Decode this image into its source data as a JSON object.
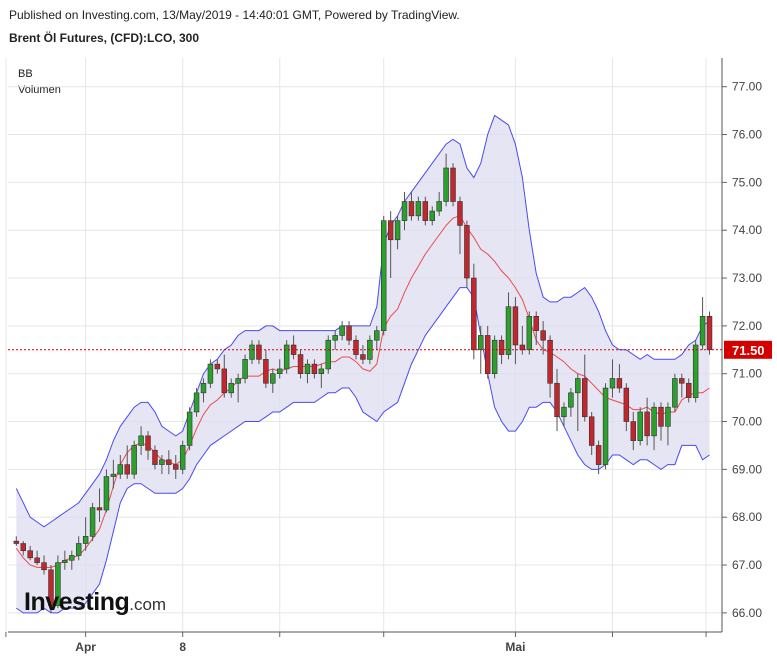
{
  "header": {
    "published": "Published on Investing.com, 13/May/2019 - 14:40:01 GMT, Powered by TradingView.",
    "title": "Brent Öl Futures, (CFD):LCO, 300"
  },
  "legend": {
    "bb": "BB",
    "volume": "Volumen"
  },
  "watermark": {
    "brand": "Investing",
    "suffix": ".com"
  },
  "colors": {
    "up": "#2ca02c",
    "down": "#c0282d",
    "wick": "#555555",
    "band_fill": "#dcdcf0",
    "band_line": "#4a4aee",
    "basis_line": "#ee4a4a",
    "price_line": "#d40000",
    "price_label_bg": "#d40000",
    "grid": "#e6e6e6"
  },
  "chart_data": {
    "type": "candlestick",
    "y_axis": {
      "ticks": [
        "66.00",
        "67.00",
        "68.00",
        "69.00",
        "70.00",
        "71.00",
        "72.00",
        "73.00",
        "74.00",
        "75.00",
        "76.00",
        "77.00"
      ],
      "min": 65.6,
      "max": 77.6,
      "side": "right"
    },
    "x_axis": {
      "labels": [
        "Apr",
        "8",
        "Mai"
      ],
      "label_positions": [
        10,
        24,
        72
      ],
      "n": 101
    },
    "grid": true,
    "last_price": "71.50",
    "last_price_value": 71.5,
    "candles": [
      [
        67.5,
        67.6,
        67.4,
        67.45
      ],
      [
        67.45,
        67.5,
        67.2,
        67.3
      ],
      [
        67.3,
        67.4,
        67.1,
        67.15
      ],
      [
        67.15,
        67.3,
        67.0,
        67.05
      ],
      [
        67.05,
        67.2,
        66.8,
        66.9
      ],
      [
        66.9,
        67.0,
        66.0,
        66.15
      ],
      [
        66.15,
        67.2,
        66.1,
        67.05
      ],
      [
        67.05,
        67.3,
        66.9,
        67.1
      ],
      [
        67.1,
        67.3,
        66.9,
        67.2
      ],
      [
        67.2,
        67.6,
        67.1,
        67.45
      ],
      [
        67.45,
        68.0,
        67.3,
        67.6
      ],
      [
        67.6,
        68.3,
        67.5,
        68.2
      ],
      [
        68.2,
        68.6,
        67.9,
        68.15
      ],
      [
        68.15,
        69.0,
        68.1,
        68.85
      ],
      [
        68.85,
        69.2,
        68.6,
        68.9
      ],
      [
        68.9,
        69.3,
        68.8,
        69.1
      ],
      [
        69.1,
        69.5,
        68.8,
        68.9
      ],
      [
        68.9,
        69.6,
        68.8,
        69.5
      ],
      [
        69.5,
        69.9,
        69.3,
        69.7
      ],
      [
        69.7,
        69.8,
        69.2,
        69.4
      ],
      [
        69.4,
        69.5,
        69.0,
        69.1
      ],
      [
        69.1,
        69.3,
        68.9,
        69.2
      ],
      [
        69.2,
        69.4,
        68.9,
        69.1
      ],
      [
        69.1,
        69.3,
        68.8,
        69.0
      ],
      [
        69.0,
        69.6,
        68.9,
        69.5
      ],
      [
        69.5,
        70.3,
        69.4,
        70.2
      ],
      [
        70.2,
        70.7,
        70.1,
        70.6
      ],
      [
        70.6,
        70.9,
        70.4,
        70.8
      ],
      [
        70.8,
        71.3,
        70.7,
        71.2
      ],
      [
        71.2,
        71.3,
        71.0,
        71.1
      ],
      [
        71.1,
        71.4,
        70.5,
        70.6
      ],
      [
        70.6,
        70.9,
        70.5,
        70.8
      ],
      [
        70.8,
        71.0,
        70.4,
        70.9
      ],
      [
        70.9,
        71.4,
        70.8,
        71.3
      ],
      [
        71.3,
        71.7,
        71.2,
        71.6
      ],
      [
        71.6,
        71.7,
        71.2,
        71.3
      ],
      [
        71.3,
        71.5,
        70.7,
        70.8
      ],
      [
        70.8,
        71.1,
        70.6,
        71.0
      ],
      [
        71.0,
        71.3,
        70.9,
        71.1
      ],
      [
        71.1,
        71.7,
        71.0,
        71.6
      ],
      [
        71.6,
        71.8,
        71.3,
        71.4
      ],
      [
        71.4,
        71.5,
        70.9,
        71.0
      ],
      [
        71.0,
        71.3,
        70.8,
        71.2
      ],
      [
        71.2,
        71.3,
        70.9,
        71.0
      ],
      [
        71.0,
        71.2,
        70.7,
        71.1
      ],
      [
        71.1,
        71.8,
        71.0,
        71.7
      ],
      [
        71.7,
        71.9,
        71.5,
        71.8
      ],
      [
        71.8,
        72.1,
        71.7,
        72.0
      ],
      [
        72.0,
        72.1,
        71.6,
        71.7
      ],
      [
        71.7,
        71.8,
        71.3,
        71.4
      ],
      [
        71.4,
        71.6,
        71.2,
        71.3
      ],
      [
        71.3,
        71.8,
        71.2,
        71.7
      ],
      [
        71.7,
        72.0,
        71.5,
        71.9
      ],
      [
        71.9,
        74.3,
        71.8,
        74.2
      ],
      [
        74.2,
        74.4,
        73.0,
        73.8
      ],
      [
        73.8,
        74.3,
        73.6,
        74.2
      ],
      [
        74.2,
        74.8,
        74.0,
        74.6
      ],
      [
        74.6,
        74.8,
        74.2,
        74.3
      ],
      [
        74.3,
        74.7,
        74.2,
        74.6
      ],
      [
        74.6,
        74.7,
        74.1,
        74.2
      ],
      [
        74.2,
        74.5,
        74.1,
        74.4
      ],
      [
        74.4,
        74.8,
        74.3,
        74.6
      ],
      [
        74.6,
        75.6,
        74.5,
        75.3
      ],
      [
        75.3,
        75.4,
        74.5,
        74.6
      ],
      [
        74.6,
        74.7,
        73.5,
        74.1
      ],
      [
        74.1,
        74.2,
        72.8,
        73.0
      ],
      [
        73.0,
        73.3,
        71.3,
        71.5
      ],
      [
        71.5,
        72.0,
        71.0,
        71.8
      ],
      [
        71.8,
        72.0,
        70.9,
        71.0
      ],
      [
        71.0,
        71.8,
        70.9,
        71.7
      ],
      [
        71.7,
        71.8,
        71.2,
        71.4
      ],
      [
        71.4,
        72.7,
        71.3,
        72.4
      ],
      [
        72.4,
        72.6,
        71.2,
        71.6
      ],
      [
        71.6,
        72.0,
        71.4,
        71.5
      ],
      [
        71.5,
        72.3,
        71.4,
        72.2
      ],
      [
        72.2,
        72.3,
        71.6,
        71.9
      ],
      [
        71.9,
        72.1,
        71.4,
        71.7
      ],
      [
        71.7,
        71.8,
        70.5,
        70.8
      ],
      [
        70.8,
        71.1,
        69.8,
        70.1
      ],
      [
        70.1,
        70.4,
        69.9,
        70.3
      ],
      [
        70.3,
        70.7,
        70.1,
        70.6
      ],
      [
        70.6,
        71.0,
        69.8,
        70.9
      ],
      [
        70.9,
        71.4,
        70.0,
        70.1
      ],
      [
        70.1,
        70.2,
        69.3,
        69.5
      ],
      [
        69.5,
        69.6,
        68.9,
        69.1
      ],
      [
        69.1,
        70.8,
        69.0,
        70.7
      ],
      [
        70.7,
        71.3,
        70.5,
        70.9
      ],
      [
        70.9,
        71.2,
        70.6,
        70.7
      ],
      [
        70.7,
        70.8,
        69.8,
        70.0
      ],
      [
        70.0,
        70.2,
        69.4,
        69.6
      ],
      [
        69.6,
        70.3,
        69.5,
        70.2
      ],
      [
        70.2,
        70.5,
        69.5,
        69.7
      ],
      [
        69.7,
        70.4,
        69.4,
        70.3
      ],
      [
        70.3,
        70.4,
        69.6,
        69.9
      ],
      [
        69.9,
        70.4,
        69.5,
        70.3
      ],
      [
        70.3,
        71.0,
        70.2,
        70.9
      ],
      [
        70.9,
        71.0,
        70.5,
        70.8
      ],
      [
        70.8,
        70.9,
        70.4,
        70.5
      ],
      [
        70.5,
        71.7,
        70.4,
        71.6
      ],
      [
        71.6,
        72.6,
        71.5,
        72.2
      ],
      [
        72.2,
        72.3,
        71.4,
        71.5
      ]
    ],
    "bb_upper": [
      68.6,
      68.3,
      68.0,
      67.9,
      67.8,
      67.9,
      68.0,
      68.1,
      68.2,
      68.3,
      68.5,
      68.7,
      68.9,
      69.2,
      69.6,
      69.9,
      70.1,
      70.3,
      70.4,
      70.4,
      70.2,
      69.9,
      69.8,
      69.7,
      69.8,
      70.2,
      70.6,
      71.0,
      71.2,
      71.3,
      71.5,
      71.6,
      71.8,
      71.9,
      71.9,
      71.9,
      72.0,
      72.0,
      71.9,
      71.9,
      71.9,
      71.9,
      71.9,
      71.9,
      71.9,
      71.9,
      71.9,
      72.0,
      72.0,
      72.0,
      72.0,
      72.0,
      72.4,
      73.7,
      74.1,
      74.3,
      74.6,
      74.8,
      75.0,
      75.2,
      75.4,
      75.6,
      75.8,
      75.9,
      75.8,
      75.3,
      75.1,
      75.4,
      76.0,
      76.4,
      76.3,
      76.2,
      75.8,
      75.1,
      74.0,
      73.1,
      72.6,
      72.5,
      72.5,
      72.6,
      72.6,
      72.7,
      72.8,
      72.6,
      72.3,
      71.9,
      71.6,
      71.5,
      71.5,
      71.4,
      71.3,
      71.4,
      71.3,
      71.3,
      71.3,
      71.3,
      71.4,
      71.6,
      71.7,
      72.0,
      72.1
    ],
    "bb_lower": [
      66.1,
      66.0,
      66.0,
      66.0,
      66.1,
      66.0,
      66.0,
      66.1,
      66.1,
      66.1,
      66.2,
      66.4,
      66.6,
      67.1,
      67.7,
      68.3,
      68.6,
      68.7,
      68.7,
      68.6,
      68.5,
      68.5,
      68.5,
      68.5,
      68.6,
      68.8,
      69.1,
      69.3,
      69.5,
      69.6,
      69.7,
      69.8,
      69.9,
      70.0,
      70.0,
      70.0,
      70.1,
      70.2,
      70.2,
      70.3,
      70.4,
      70.4,
      70.4,
      70.4,
      70.5,
      70.6,
      70.6,
      70.7,
      70.7,
      70.5,
      70.2,
      70.1,
      70.0,
      70.2,
      70.3,
      70.4,
      70.8,
      71.2,
      71.5,
      71.8,
      72.0,
      72.2,
      72.4,
      72.6,
      72.8,
      72.8,
      72.6,
      71.8,
      71.0,
      70.3,
      70.0,
      69.8,
      69.8,
      70.0,
      70.3,
      70.3,
      70.4,
      70.4,
      70.2,
      69.9,
      69.6,
      69.3,
      69.1,
      69.0,
      69.0,
      69.1,
      69.3,
      69.3,
      69.2,
      69.1,
      69.2,
      69.2,
      69.1,
      69.0,
      69.1,
      69.1,
      69.5,
      69.5,
      69.5,
      69.2,
      69.3
    ],
    "bb_basis": [
      67.35,
      67.15,
      67.0,
      66.95,
      66.95,
      66.95,
      67.0,
      67.1,
      67.15,
      67.2,
      67.35,
      67.55,
      67.75,
      68.15,
      68.65,
      69.1,
      69.35,
      69.5,
      69.55,
      69.5,
      69.35,
      69.2,
      69.15,
      69.1,
      69.2,
      69.5,
      69.85,
      70.15,
      70.35,
      70.45,
      70.6,
      70.7,
      70.85,
      70.95,
      70.95,
      70.95,
      71.05,
      71.1,
      71.05,
      71.1,
      71.15,
      71.15,
      71.15,
      71.15,
      71.2,
      71.25,
      71.25,
      71.35,
      71.35,
      71.25,
      71.1,
      71.05,
      71.2,
      71.95,
      72.2,
      72.35,
      72.7,
      73.0,
      73.25,
      73.5,
      73.7,
      73.9,
      74.1,
      74.25,
      74.3,
      74.05,
      73.85,
      73.6,
      73.5,
      73.35,
      73.15,
      73.0,
      72.8,
      72.55,
      72.15,
      71.7,
      71.5,
      71.45,
      71.35,
      71.25,
      71.1,
      71.0,
      70.95,
      70.8,
      70.65,
      70.5,
      70.45,
      70.4,
      70.35,
      70.25,
      70.25,
      70.3,
      70.2,
      70.15,
      70.2,
      70.2,
      70.45,
      70.55,
      70.6,
      70.6,
      70.7
    ]
  }
}
